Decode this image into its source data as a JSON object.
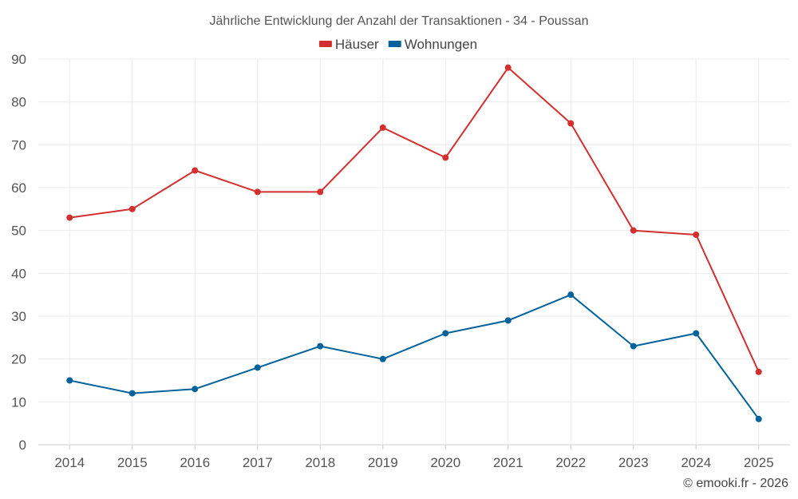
{
  "chart_data": {
    "type": "line",
    "title": "Jährliche Entwicklung der Anzahl der Transaktionen - 34 - Poussan",
    "categories": [
      "2014",
      "2015",
      "2016",
      "2017",
      "2018",
      "2019",
      "2020",
      "2021",
      "2022",
      "2023",
      "2024",
      "2025"
    ],
    "series": [
      {
        "name": "Häuser",
        "color": "#d32f2f",
        "values": [
          53,
          55,
          64,
          59,
          59,
          74,
          67,
          88,
          75,
          50,
          49,
          17
        ]
      },
      {
        "name": "Wohnungen",
        "color": "#01629c",
        "values": [
          15,
          12,
          13,
          18,
          23,
          20,
          26,
          29,
          35,
          23,
          26,
          6
        ]
      }
    ],
    "xlabel": "",
    "ylabel": "",
    "ylim": [
      0,
      90
    ],
    "yticks": [
      "0",
      "10",
      "20",
      "30",
      "40",
      "50",
      "60",
      "70",
      "80",
      "90"
    ],
    "grid": true,
    "legend_position": "top-center"
  },
  "footer": {
    "credit": "© emooki.fr - 2026"
  }
}
